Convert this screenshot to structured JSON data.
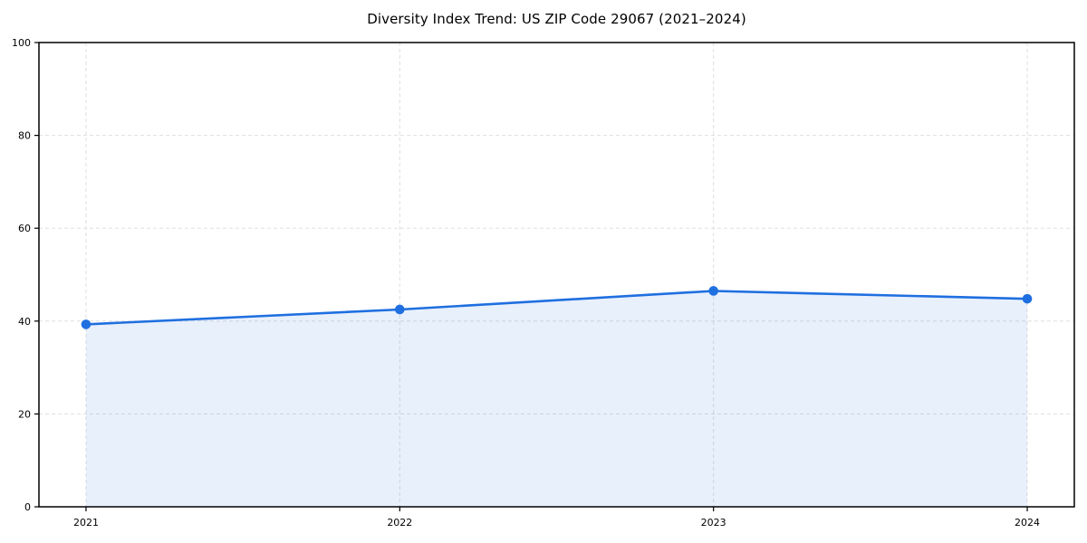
{
  "chart_data": {
    "type": "area",
    "title": "Diversity Index Trend: US ZIP Code 29067 (2021–2024)",
    "x": [
      2021,
      2022,
      2023,
      2024
    ],
    "xticklabels": [
      "2021",
      "2022",
      "2023",
      "2024"
    ],
    "series": [
      {
        "name": "Diversity Index",
        "values": [
          39.3,
          42.5,
          46.5,
          44.8
        ]
      }
    ],
    "xlabel": "",
    "ylabel": "",
    "ylim": [
      0,
      100
    ],
    "yticks": [
      0,
      20,
      40,
      60,
      80,
      100
    ],
    "grid": true,
    "grid_style": "dashed",
    "legend_position": "none",
    "marker": "circle",
    "colors": {
      "line": "#1f6fe0",
      "marker": "#1f6fe0",
      "fill": "rgba(31,111,224,0.10)",
      "grid": "#dfdfdf",
      "spine": "#000000",
      "tick": "#000000",
      "text": "#000000",
      "background": "#ffffff"
    }
  }
}
